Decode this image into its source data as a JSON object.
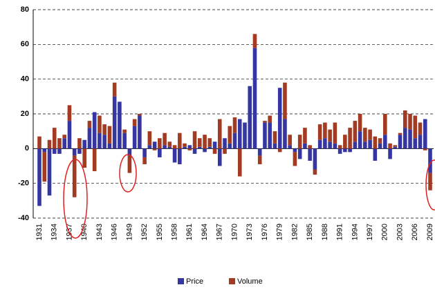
{
  "chart_data": {
    "type": "stacked-bar",
    "categories": [
      "1931",
      null,
      null,
      "1934",
      null,
      null,
      "1937",
      null,
      null,
      "1940",
      null,
      null,
      "1943",
      null,
      null,
      "1946",
      null,
      null,
      "1949",
      null,
      null,
      "1952",
      null,
      null,
      "1955",
      null,
      null,
      "1958",
      null,
      null,
      "1961",
      null,
      null,
      "1964",
      null,
      null,
      "1967",
      null,
      null,
      "1970",
      null,
      null,
      "1973",
      null,
      null,
      "1976",
      null,
      null,
      "1979",
      null,
      null,
      "1982",
      null,
      null,
      "1985",
      null,
      null,
      "1988",
      null,
      null,
      "1991",
      null,
      null,
      "1994",
      null,
      null,
      "1997",
      null,
      null,
      "2000",
      null,
      null,
      "2003",
      null,
      null,
      "2006",
      null,
      null,
      "2009"
    ],
    "series": [
      {
        "name": "Price",
        "color": "#3636a3",
        "values": [
          -33,
          -2,
          -27,
          -3,
          -3,
          6,
          16,
          -4,
          -3,
          5,
          12,
          21,
          9,
          8,
          3,
          30,
          27,
          9,
          -4,
          13,
          19,
          -5,
          2,
          4,
          -5,
          2,
          1,
          -8,
          -9,
          1,
          2,
          -3,
          1,
          -2,
          1,
          4,
          -10,
          6,
          3,
          9,
          17,
          15,
          36,
          58,
          -4,
          15,
          15,
          3,
          35,
          17,
          2,
          -2,
          -6,
          3,
          -7,
          -12,
          5,
          6,
          4,
          3,
          -3,
          -2,
          -2,
          4,
          10,
          4,
          5,
          -7,
          3,
          8,
          -6,
          1,
          8,
          12,
          11,
          6,
          8,
          17,
          -14
        ]
      },
      {
        "name": "Volume",
        "color": "#a33b22",
        "values": [
          7,
          -17,
          5,
          12,
          6,
          2,
          9,
          -24,
          6,
          -11,
          4,
          -13,
          10,
          6,
          10,
          8,
          0,
          2,
          -10,
          4,
          1,
          -4,
          8,
          -1,
          6,
          7,
          3,
          2,
          9,
          2,
          -1,
          10,
          5,
          8,
          5,
          -3,
          17,
          -3,
          10,
          9,
          -16,
          0,
          0,
          8,
          -5,
          1,
          4,
          7,
          -2,
          21,
          6,
          -8,
          8,
          9,
          2,
          -3,
          9,
          9,
          7,
          12,
          2,
          8,
          12,
          12,
          10,
          8,
          6,
          7,
          3,
          12,
          3,
          1,
          1,
          10,
          9,
          13,
          7,
          -1,
          -10
        ]
      }
    ],
    "ylim": [
      -40,
      80
    ],
    "yticks": [
      -40,
      -20,
      0,
      20,
      40,
      60,
      80
    ],
    "grid": true,
    "legend": "bottom"
  }
}
